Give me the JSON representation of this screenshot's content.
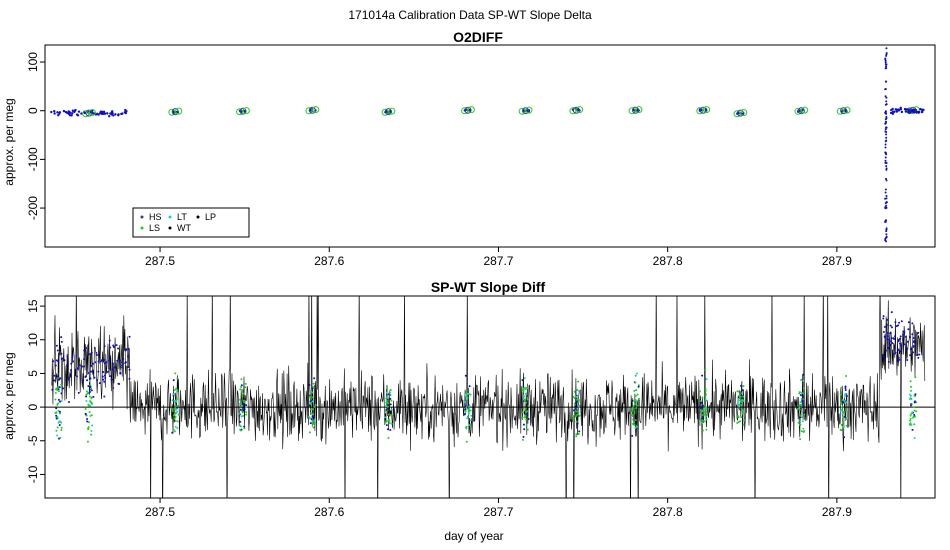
{
  "page_title": "171014a   Calibration Data SP-WT Slope Delta",
  "colors": {
    "HS": "#3b3b8f",
    "LS": "#22cc22",
    "LT": "#22cccc",
    "WT": "#000000",
    "LP": "#000000",
    "blue": "#1010c0",
    "trace": "#000000"
  },
  "chart_data": [
    {
      "type": "scatter",
      "title": "O2DIFF",
      "xlabel": "",
      "ylabel": "approx. per meg",
      "xlim": [
        287.432,
        287.958
      ],
      "ylim": [
        -280,
        135
      ],
      "x_ticks": [
        287.5,
        287.6,
        287.7,
        287.8,
        287.9
      ],
      "x_tick_labels": [
        "287.5",
        "287.6",
        "287.7",
        "287.8",
        "287.9"
      ],
      "y_ticks": [
        100,
        0,
        -100,
        -200
      ],
      "y_tick_labels": [
        "100",
        "0",
        "-100",
        "-200"
      ],
      "grid": false,
      "legend_position": "bottom-left",
      "legend": [
        "HS",
        "LS",
        "LT",
        "WT",
        "LP"
      ],
      "calibration_groups": [
        {
          "x": 287.458,
          "y": -5
        },
        {
          "x": 287.509,
          "y": -2
        },
        {
          "x": 287.549,
          "y": -1
        },
        {
          "x": 287.59,
          "y": 1
        },
        {
          "x": 287.635,
          "y": -2
        },
        {
          "x": 287.682,
          "y": 1
        },
        {
          "x": 287.716,
          "y": 0
        },
        {
          "x": 287.746,
          "y": 1
        },
        {
          "x": 287.781,
          "y": 1
        },
        {
          "x": 287.821,
          "y": 1
        },
        {
          "x": 287.843,
          "y": -5
        },
        {
          "x": 287.879,
          "y": 0
        },
        {
          "x": 287.904,
          "y": 0
        },
        {
          "x": 287.945,
          "y": 1
        }
      ],
      "spike_x": 287.929,
      "spike_range": [
        -272,
        130
      ]
    },
    {
      "type": "line",
      "title": "SP-WT Slope Diff",
      "xlabel": "day of year",
      "ylabel": "approx. per meg",
      "xlim": [
        287.432,
        287.958
      ],
      "ylim": [
        -13.5,
        16.5
      ],
      "x_ticks": [
        287.5,
        287.6,
        287.7,
        287.8,
        287.9
      ],
      "x_tick_labels": [
        "287.5",
        "287.6",
        "287.7",
        "287.8",
        "287.9"
      ],
      "y_ticks": [
        15,
        10,
        5,
        0,
        -5,
        -10
      ],
      "y_tick_labels": [
        "15",
        "10",
        "5",
        "0",
        "-5",
        "-10"
      ],
      "grid": false,
      "reference_line_y": 0,
      "noise_amplitude": 6,
      "calibration_x": [
        287.44,
        287.458,
        287.509,
        287.549,
        287.59,
        287.635,
        287.682,
        287.716,
        287.746,
        287.781,
        287.821,
        287.843,
        287.879,
        287.904,
        287.945
      ]
    }
  ]
}
